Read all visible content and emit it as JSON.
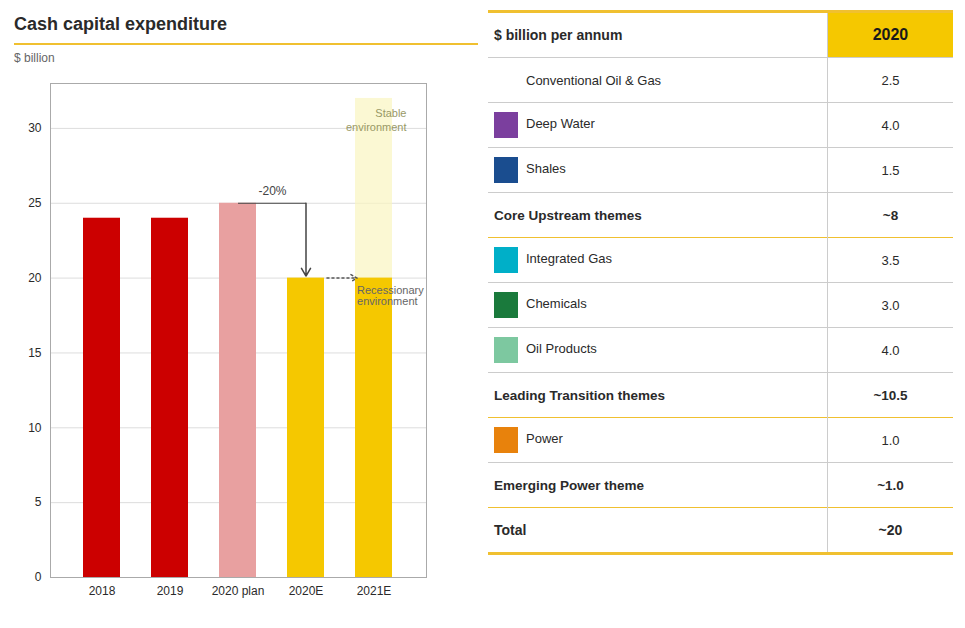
{
  "chart_data": {
    "type": "bar",
    "title": "Cash capital expenditure",
    "ylabel": "$ billion",
    "categories": [
      "2018",
      "2019",
      "2020 plan",
      "2020E",
      "2021E"
    ],
    "values": [
      24,
      24,
      25,
      20,
      20
    ],
    "colors": [
      "#cc0000",
      "#cc0000",
      "#e8a0a0",
      "#f5c800",
      "#f5c800"
    ],
    "ylim": [
      0,
      33
    ],
    "yticks": [
      0,
      5,
      10,
      15,
      20,
      25,
      30
    ],
    "grid": true,
    "background_bar": {
      "category": "2021E",
      "value": 32,
      "color": "#faf5c0"
    },
    "annotations": [
      {
        "text": "-20%",
        "from": "2020 plan",
        "to": "2020E"
      },
      {
        "text": "Recessionary\nenvironment",
        "from": "2020E",
        "to": "2021E"
      },
      {
        "text": "Stable\nenvironment",
        "category": "2021E"
      }
    ],
    "table": {
      "header": [
        "$ billion per annum",
        "2020"
      ],
      "header_color": "#f5c800",
      "rule_color": "#f0c030",
      "rows": [
        {
          "label": "Conventional Oil & Gas",
          "value": "2.5"
        },
        {
          "label": "Deep Water",
          "value": "4.0",
          "color": "#7b3f9e"
        },
        {
          "label": "Shales",
          "value": "1.5",
          "color": "#1a4d8f"
        },
        {
          "label": "Core Upstream themes",
          "value": "~8",
          "bold": true
        },
        {
          "label": "Integrated Gas",
          "value": "3.5",
          "color": "#00afc8"
        },
        {
          "label": "Chemicals",
          "value": "3.0",
          "color": "#1a7a3c"
        },
        {
          "label": "Oil Products",
          "value": "4.0",
          "color": "#7dc8a0"
        },
        {
          "label": "Leading Transition themes",
          "value": "~10.5",
          "bold": true
        },
        {
          "label": "Power",
          "value": "1.0",
          "color": "#e8820c"
        },
        {
          "label": "Emerging Power theme",
          "value": "~1.0",
          "bold": true
        },
        {
          "label": "Total",
          "value": "~20",
          "bold": true,
          "total": true
        }
      ]
    }
  }
}
